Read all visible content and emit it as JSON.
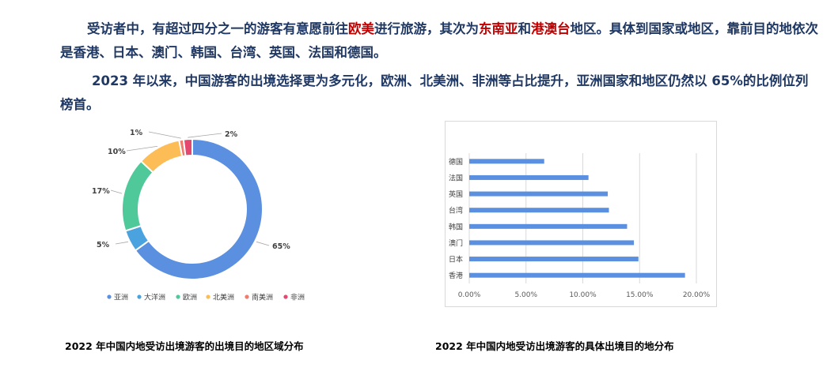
{
  "paragraph1": {
    "t1": "受访者中，有超过四分之一的游客有意愿前往",
    "h1": "欧美",
    "t2": "进行旅游，其次为",
    "h2": "东南亚",
    "t3": "和",
    "h3": "港澳台",
    "t4": "地区。具体到国家或地区，靠前目的地依次是香港、日本、澳门、韩国、台湾、英国、法国和德国。"
  },
  "paragraph2": "2023 年以来，中国游客的出境选择更为多元化，欧洲、北美洲、非洲等占比提升，亚洲国家和地区仍然以 65%的比例位列榜首。",
  "captions": {
    "left": "2022 年中国内地受访出境游客的出境目的地区域分布",
    "right": "2022 年中国内地受访出境游客的具体出境目的地分布"
  },
  "chart_data": [
    {
      "type": "pie",
      "title": "",
      "categories": [
        "亚洲",
        "大洋洲",
        "欧洲",
        "北美洲",
        "南美洲",
        "非洲"
      ],
      "values": [
        65,
        5,
        17,
        10,
        1,
        2
      ],
      "labels": [
        "65%",
        "5%",
        "17%",
        "10%",
        "1%",
        "2%"
      ],
      "colors": [
        "#5b8fe0",
        "#4aa3df",
        "#4fc99a",
        "#fdbd56",
        "#f07c6e",
        "#e5486e"
      ],
      "legend": "bottom"
    },
    {
      "type": "bar",
      "orientation": "horizontal",
      "title": "",
      "categories": [
        "香港",
        "日本",
        "澳门",
        "韩国",
        "台湾",
        "英国",
        "法国",
        "德国"
      ],
      "values": [
        0.19,
        0.149,
        0.145,
        0.139,
        0.123,
        0.122,
        0.105,
        0.066
      ],
      "xlim": [
        0,
        0.2
      ],
      "xticks": [
        "0.00%",
        "5.00%",
        "10.00%",
        "15.00%",
        "20.00%"
      ],
      "grid": true,
      "color": "#5b8fe0"
    }
  ]
}
